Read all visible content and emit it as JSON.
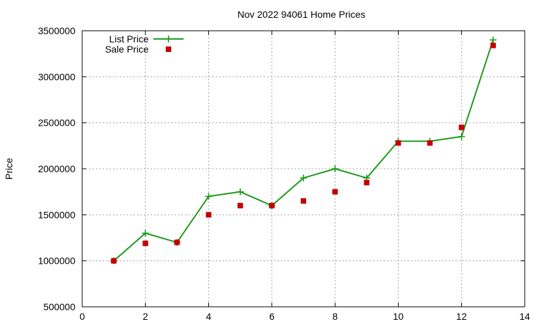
{
  "chart_data": {
    "type": "line",
    "title": "Nov 2022 94061 Home Prices",
    "xlabel": "",
    "ylabel": "Price",
    "xlim": [
      0,
      14
    ],
    "ylim": [
      500000,
      3500000
    ],
    "xticks": [
      0,
      2,
      4,
      6,
      8,
      10,
      12,
      14
    ],
    "yticks": [
      500000,
      1000000,
      1500000,
      2000000,
      2500000,
      3000000,
      3500000
    ],
    "grid": true,
    "legend_position": "top-left",
    "series": [
      {
        "name": "List Price",
        "style": "line-plus",
        "color": "#1a9a1a",
        "x": [
          1,
          2,
          3,
          4,
          5,
          6,
          7,
          8,
          9,
          10,
          11,
          12,
          13
        ],
        "values": [
          1000000,
          1300000,
          1200000,
          1700000,
          1750000,
          1600000,
          1900000,
          2000000,
          1900000,
          2300000,
          2300000,
          2350000,
          3400000
        ]
      },
      {
        "name": "Sale Price",
        "style": "square",
        "color": "#c40000",
        "x": [
          1,
          2,
          3,
          4,
          5,
          6,
          7,
          8,
          9,
          10,
          11,
          12,
          13
        ],
        "values": [
          1000000,
          1190000,
          1200000,
          1500000,
          1600000,
          1600000,
          1650000,
          1750000,
          1850000,
          2280000,
          2280000,
          2450000,
          3340000
        ]
      }
    ]
  }
}
